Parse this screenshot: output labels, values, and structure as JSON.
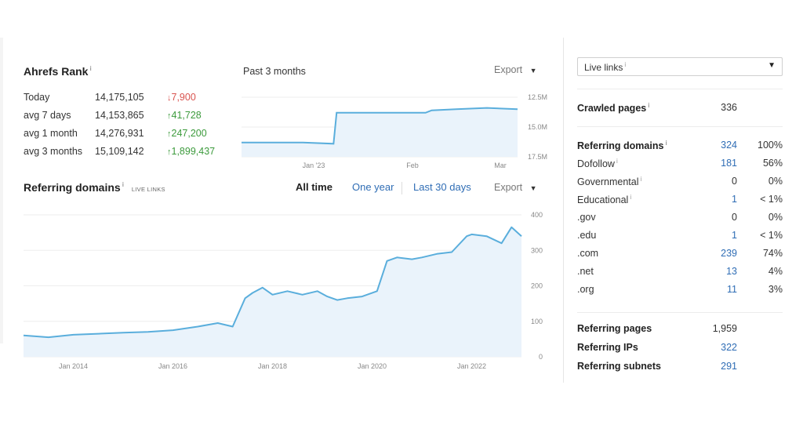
{
  "rank": {
    "title": "Ahrefs Rank",
    "period_label": "Past 3 months",
    "export_label": "Export",
    "rows": [
      {
        "label": "Today",
        "value": "14,175,105",
        "change": "7,900",
        "dir": "down"
      },
      {
        "label": "avg 7 days",
        "value": "14,153,865",
        "change": "41,728",
        "dir": "up"
      },
      {
        "label": "avg 1 month",
        "value": "14,276,931",
        "change": "247,200",
        "dir": "up"
      },
      {
        "label": "avg 3 months",
        "value": "15,109,142",
        "change": "1,899,437",
        "dir": "up"
      }
    ]
  },
  "referring": {
    "title": "Referring domains",
    "sub_label": "LIVE LINKS",
    "tabs": [
      "All time",
      "One year",
      "Last 30 days"
    ],
    "active_tab": "All time",
    "export_label": "Export"
  },
  "side": {
    "select_value": "Live links",
    "crawled": {
      "label": "Crawled pages",
      "value": "336"
    },
    "domains": [
      {
        "label": "Referring domains",
        "value": "324",
        "pct": "100%",
        "bold": true,
        "info": true
      },
      {
        "label": "Dofollow",
        "value": "181",
        "pct": "56%",
        "info": true
      },
      {
        "label": "Governmental",
        "value": "0",
        "pct": "0%",
        "info": true
      },
      {
        "label": "Educational",
        "value": "1",
        "pct": "< 1%",
        "info": true
      },
      {
        "label": ".gov",
        "value": "0",
        "pct": "0%"
      },
      {
        "label": ".edu",
        "value": "1",
        "pct": "< 1%"
      },
      {
        "label": ".com",
        "value": "239",
        "pct": "74%"
      },
      {
        "label": ".net",
        "value": "13",
        "pct": "4%"
      },
      {
        "label": ".org",
        "value": "11",
        "pct": "3%"
      }
    ],
    "bottom": [
      {
        "label": "Referring pages",
        "value": "1,959"
      },
      {
        "label": "Referring IPs",
        "value": "322"
      },
      {
        "label": "Referring subnets",
        "value": "291"
      }
    ]
  },
  "colors": {
    "line": "#5aaedc",
    "fill": "#eaf3fb",
    "link": "#2f6db5",
    "down": "#d9534f",
    "up": "#3c9a3c"
  },
  "chart_data": [
    {
      "type": "line",
      "x_ticks": [
        "Jan '23",
        "Feb",
        "Mar"
      ],
      "y_ticks": [
        "12.5M",
        "15.0M",
        "17.5M"
      ],
      "ylim": [
        17.5,
        12.5
      ],
      "x": [
        0,
        10,
        20,
        30,
        31,
        40,
        50,
        60,
        62,
        70,
        80,
        90
      ],
      "values": [
        16.3,
        16.3,
        16.3,
        16.4,
        13.8,
        13.8,
        13.8,
        13.8,
        13.6,
        13.5,
        13.4,
        13.5
      ],
      "grid": true
    },
    {
      "type": "area",
      "x_ticks": [
        "Jan 2014",
        "Jan 2016",
        "Jan 2018",
        "Jan 2020",
        "Jan 2022"
      ],
      "y_ticks": [
        "0",
        "100",
        "200",
        "300",
        "400"
      ],
      "ylim": [
        0,
        400
      ],
      "x": [
        2013.0,
        2013.5,
        2014.0,
        2014.5,
        2015.0,
        2015.5,
        2016.0,
        2016.5,
        2016.9,
        2017.2,
        2017.45,
        2017.6,
        2017.8,
        2018.0,
        2018.3,
        2018.6,
        2018.9,
        2019.1,
        2019.3,
        2019.5,
        2019.8,
        2020.1,
        2020.3,
        2020.5,
        2020.8,
        2021.0,
        2021.3,
        2021.6,
        2021.9,
        2022.0,
        2022.3,
        2022.6,
        2022.8,
        2023.0
      ],
      "values": [
        60,
        55,
        62,
        65,
        68,
        70,
        75,
        85,
        95,
        85,
        165,
        180,
        195,
        175,
        185,
        175,
        185,
        170,
        160,
        165,
        170,
        185,
        270,
        280,
        275,
        280,
        290,
        295,
        340,
        345,
        340,
        320,
        365,
        340
      ],
      "grid": true
    }
  ]
}
